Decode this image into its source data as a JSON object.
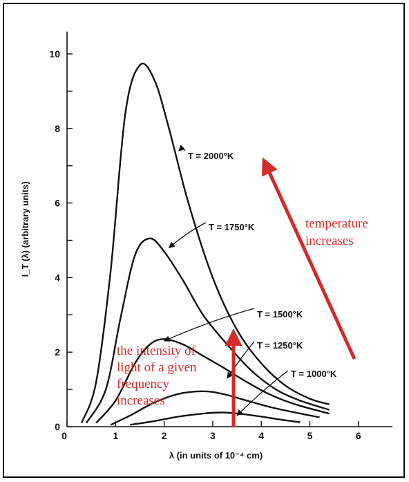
{
  "chart_data": {
    "type": "line",
    "xlabel": "λ (in units of 10⁻⁴ cm)",
    "ylabel": "I_T (λ) (arbitrary units)",
    "xlim": [
      0,
      6.7
    ],
    "ylim": [
      0,
      10.6
    ],
    "xticks": [
      "0",
      "1",
      "2",
      "3",
      "4",
      "5",
      "6"
    ],
    "yticks": [
      "0",
      "2",
      "4",
      "6",
      "8",
      "10"
    ],
    "grid": false,
    "series": [
      {
        "name": "T = 2000°K",
        "peak_x": 1.5,
        "peak_y": 9.7,
        "points": [
          [
            0.3,
            0.1
          ],
          [
            0.6,
            1.2
          ],
          [
            0.9,
            4.2
          ],
          [
            1.2,
            8.4
          ],
          [
            1.5,
            9.7
          ],
          [
            1.8,
            9.3
          ],
          [
            2.1,
            8.0
          ],
          [
            2.5,
            6.0
          ],
          [
            3.0,
            4.0
          ],
          [
            3.5,
            2.6
          ],
          [
            4.0,
            1.7
          ],
          [
            4.5,
            1.1
          ],
          [
            5.0,
            0.75
          ],
          [
            5.4,
            0.6
          ]
        ]
      },
      {
        "name": "T = 1750°K",
        "peak_x": 1.7,
        "peak_y": 5.05,
        "points": [
          [
            0.4,
            0.1
          ],
          [
            0.8,
            1.0
          ],
          [
            1.1,
            2.9
          ],
          [
            1.4,
            4.6
          ],
          [
            1.7,
            5.05
          ],
          [
            2.0,
            4.7
          ],
          [
            2.4,
            3.9
          ],
          [
            2.8,
            3.0
          ],
          [
            3.3,
            2.2
          ],
          [
            3.8,
            1.5
          ],
          [
            4.3,
            1.0
          ],
          [
            4.8,
            0.7
          ],
          [
            5.4,
            0.45
          ]
        ]
      },
      {
        "name": "T = 1500°K",
        "peak_x": 2.0,
        "peak_y": 2.35,
        "points": [
          [
            0.6,
            0.1
          ],
          [
            1.0,
            0.7
          ],
          [
            1.4,
            1.7
          ],
          [
            1.7,
            2.2
          ],
          [
            2.0,
            2.35
          ],
          [
            2.4,
            2.2
          ],
          [
            2.8,
            1.9
          ],
          [
            3.2,
            1.6
          ],
          [
            3.7,
            1.2
          ],
          [
            4.2,
            0.85
          ],
          [
            4.7,
            0.6
          ],
          [
            5.4,
            0.35
          ]
        ]
      },
      {
        "name": "T = 1250°K",
        "peak_x": 2.8,
        "peak_y": 0.95,
        "points": [
          [
            0.9,
            0.05
          ],
          [
            1.3,
            0.3
          ],
          [
            1.8,
            0.65
          ],
          [
            2.3,
            0.88
          ],
          [
            2.8,
            0.95
          ],
          [
            3.2,
            0.88
          ],
          [
            3.7,
            0.7
          ],
          [
            4.2,
            0.52
          ],
          [
            4.7,
            0.38
          ],
          [
            5.2,
            0.25
          ]
        ]
      },
      {
        "name": "T = 1000°K",
        "peak_x": 3.2,
        "peak_y": 0.38,
        "points": [
          [
            1.3,
            0.05
          ],
          [
            1.8,
            0.15
          ],
          [
            2.3,
            0.27
          ],
          [
            2.8,
            0.35
          ],
          [
            3.2,
            0.38
          ],
          [
            3.6,
            0.34
          ],
          [
            4.1,
            0.25
          ],
          [
            4.5,
            0.17
          ],
          [
            4.8,
            0.12
          ]
        ]
      }
    ],
    "curve_labels": [
      {
        "text": "T = 2000°K",
        "tip_x": 2.3,
        "tip_y": 7.4
      },
      {
        "text": "T = 1750°K",
        "tip_x": 2.1,
        "tip_y": 4.8
      },
      {
        "text": "T = 1500°K",
        "tip_x": 2.0,
        "tip_y": 2.3
      },
      {
        "text": "T = 1250°K",
        "tip_x": 3.3,
        "tip_y": 1.3
      },
      {
        "text": "T = 1000°K",
        "tip_x": 3.5,
        "tip_y": 0.3
      }
    ],
    "annotations": {
      "temperature": [
        "temperature",
        "increases"
      ],
      "intensity": [
        "the intensity of",
        "light of a given",
        "frequency",
        "increases"
      ],
      "color": "#d42a2a"
    }
  }
}
